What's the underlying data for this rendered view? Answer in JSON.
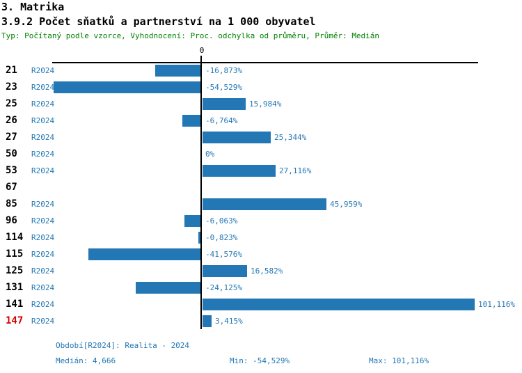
{
  "header": {
    "title": "3. Matrika",
    "subtitle": "3.9.2 Počet sňatků a partnerství na 1 000 obyvatel",
    "meta": "Typ: Počítaný podle vzorce, Vyhodnocení: Proc. odchylka od průměru, Průměr: Medián"
  },
  "chart_data": {
    "type": "bar",
    "orientation": "horizontal",
    "unit": "%",
    "x_axis": {
      "zero_label": "0",
      "only_zero_tick_shown": true
    },
    "xlim": [
      -60,
      110
    ],
    "rows": [
      {
        "id": "21",
        "period": "R2024",
        "value": -16.873,
        "label": "-16,873%",
        "highlight": false
      },
      {
        "id": "23",
        "period": "R2024",
        "value": -54.529,
        "label": "-54,529%",
        "highlight": false
      },
      {
        "id": "25",
        "period": "R2024",
        "value": 15.984,
        "label": "15,984%",
        "highlight": false
      },
      {
        "id": "26",
        "period": "R2024",
        "value": -6.764,
        "label": "-6,764%",
        "highlight": false
      },
      {
        "id": "27",
        "period": "R2024",
        "value": 25.344,
        "label": "25,344%",
        "highlight": false
      },
      {
        "id": "50",
        "period": "R2024",
        "value": 0,
        "label": "0%",
        "highlight": false
      },
      {
        "id": "53",
        "period": "R2024",
        "value": 27.116,
        "label": "27,116%",
        "highlight": false
      },
      {
        "id": "67",
        "period": null,
        "value": null,
        "label": null,
        "highlight": false
      },
      {
        "id": "85",
        "period": "R2024",
        "value": 45.959,
        "label": "45,959%",
        "highlight": false
      },
      {
        "id": "96",
        "period": "R2024",
        "value": -6.063,
        "label": "-6,063%",
        "highlight": false
      },
      {
        "id": "114",
        "period": "R2024",
        "value": -0.823,
        "label": "-0,823%",
        "highlight": false
      },
      {
        "id": "115",
        "period": "R2024",
        "value": -41.576,
        "label": "-41,576%",
        "highlight": false
      },
      {
        "id": "125",
        "period": "R2024",
        "value": 16.582,
        "label": "16,582%",
        "highlight": false
      },
      {
        "id": "131",
        "period": "R2024",
        "value": -24.125,
        "label": "-24,125%",
        "highlight": false
      },
      {
        "id": "141",
        "period": "R2024",
        "value": 101.116,
        "label": "101,116%",
        "highlight": false
      },
      {
        "id": "147",
        "period": "R2024",
        "value": 3.415,
        "label": "3,415%",
        "highlight": true
      }
    ]
  },
  "footer": {
    "period_line": "Období[R2024]: Realita - 2024",
    "median": "Medián: 4,666",
    "min": "Min: -54,529%",
    "max": "Max: 101,116%"
  },
  "colors": {
    "bar_blue": "#2277b4",
    "link_blue": "#2277b4",
    "meta_green": "#008000",
    "highlight_red": "#d40000",
    "axis_black": "#000000"
  }
}
